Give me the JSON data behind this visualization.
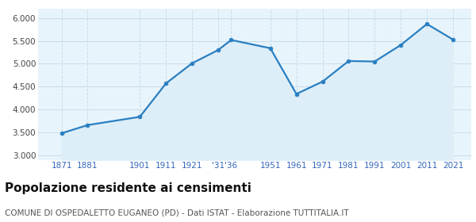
{
  "years": [
    1871,
    1881,
    1901,
    1911,
    1921,
    1931,
    1936,
    1951,
    1961,
    1971,
    1981,
    1991,
    2001,
    2011,
    2021
  ],
  "population": [
    3480,
    3660,
    3840,
    4570,
    5010,
    5300,
    5520,
    5340,
    4340,
    4610,
    5060,
    5050,
    5410,
    5870,
    5530
  ],
  "line_color": "#2a7fc1",
  "fill_color": "#ddeef8",
  "marker_color": "#2a7fc1",
  "background_color": "#e8f4fb",
  "grid_color": "#c5dcea",
  "ylim": [
    2900,
    6200
  ],
  "yticks": [
    3000,
    3500,
    4000,
    4500,
    5000,
    5500,
    6000
  ],
  "x_tick_positions": [
    1871,
    1881,
    1901,
    1911,
    1921,
    1931,
    1936,
    1951,
    1961,
    1971,
    1981,
    1991,
    2001,
    2011,
    2021
  ],
  "x_tick_labels": [
    "1871",
    "1881",
    "1901",
    "1911",
    "1921",
    "'31",
    "'36",
    "1951",
    "1961",
    "1971",
    "1981",
    "1991",
    "2001",
    "2011",
    "2021"
  ],
  "xlim": [
    1862,
    2028
  ],
  "title": "Popolazione residente ai censimenti",
  "subtitle": "COMUNE DI OSPEDALETTO EUGANEO (PD) - Dati ISTAT - Elaborazione TUTTITALIA.IT",
  "title_fontsize": 11,
  "subtitle_fontsize": 7.5,
  "tick_fontsize": 7.5
}
